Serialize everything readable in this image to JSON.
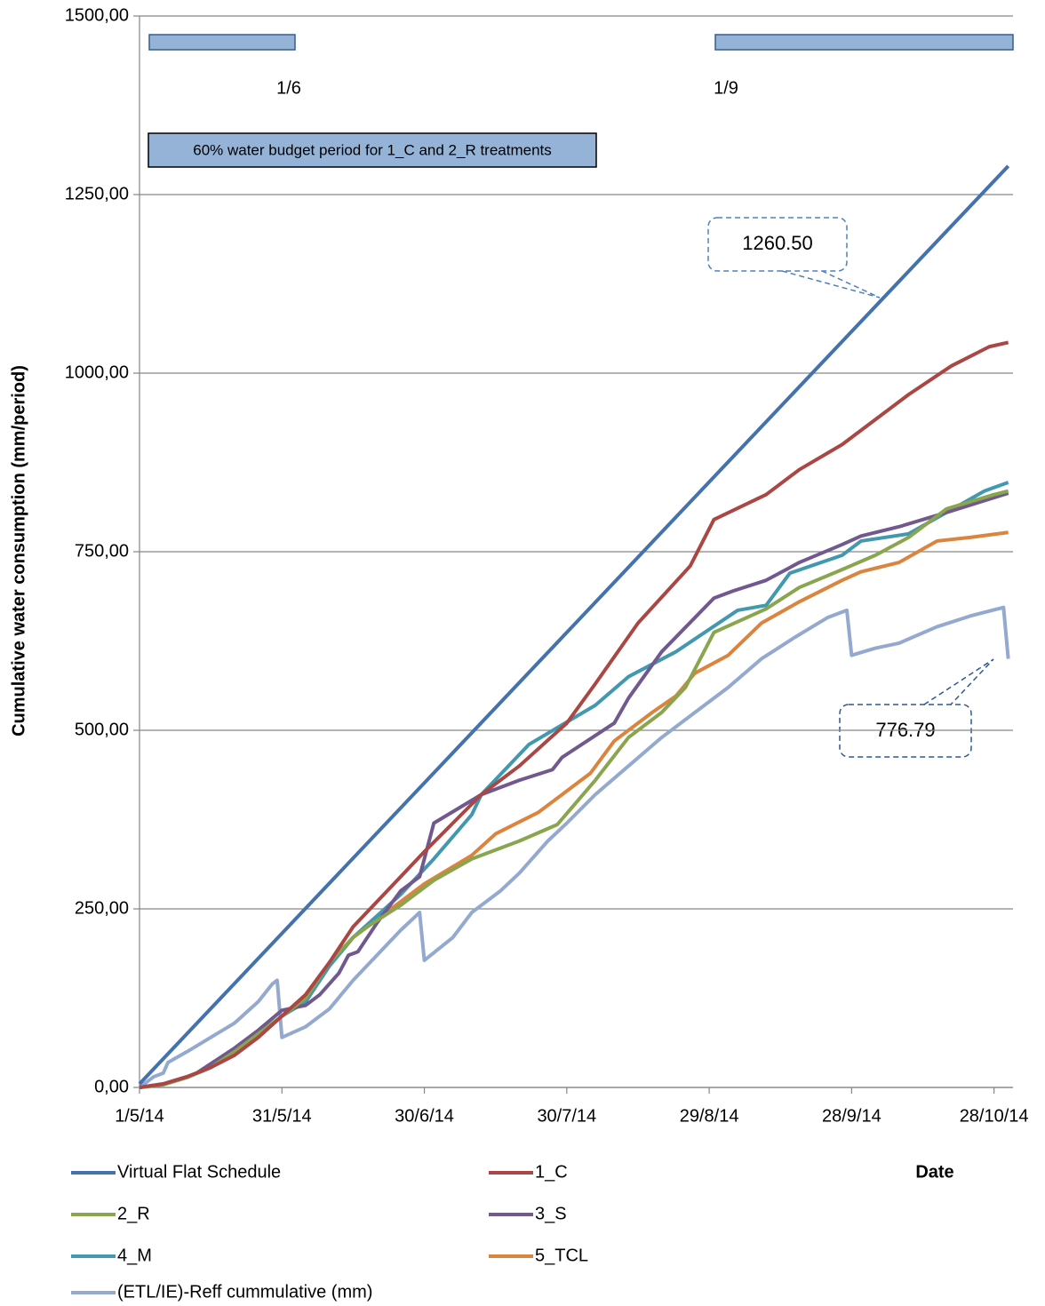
{
  "chart_data": {
    "type": "line",
    "y_label": "Cumulative water consumption (mm/period)",
    "x_label": "Date",
    "grid": true,
    "legend": "bottom",
    "xlim": [
      "1/5/14",
      "1/11/14"
    ],
    "xticks": [
      "1/5/14",
      "31/5/14",
      "30/6/14",
      "30/7/14",
      "29/8/14",
      "28/9/14",
      "28/10/14"
    ],
    "ylim": [
      0,
      1500
    ],
    "yticks": [
      {
        "value": 0,
        "label": "0,00"
      },
      {
        "value": 250,
        "label": "250,00"
      },
      {
        "value": 500,
        "label": "500,00"
      },
      {
        "value": 750,
        "label": "750,00"
      },
      {
        "value": 1000,
        "label": "1000,00"
      },
      {
        "value": 1250,
        "label": "1250,00"
      },
      {
        "value": 1500,
        "label": "1500,00"
      }
    ],
    "annotations": [
      "1/6",
      "1/9",
      "60% water budget period for 1_C and 2_R treatments",
      "1260.50",
      "776.79"
    ],
    "series": [
      {
        "name": "Virtual Flat Schedule",
        "color": "#4472ad",
        "x": [
          "1/5/14",
          "31/10/14"
        ],
        "values": [
          5,
          1290
        ]
      },
      {
        "name": "1_C",
        "color": "#aa4643",
        "x": [
          "1/5/14",
          "6/5/14",
          "11/5/14",
          "16/5/14",
          "21/5/14",
          "26/5/14",
          "31/5/14",
          "5/6/14",
          "10/6/14",
          "15/6/14",
          "20/6/14",
          "25/6/14",
          "30/6/14",
          "6/7/14",
          "12/7/14",
          "20/7/14",
          "30/7/14",
          "5/8/14",
          "14/8/14",
          "25/8/14",
          "30/8/14",
          "10/9/14",
          "17/9/14",
          "26/9/14",
          "10/10/14",
          "19/10/14",
          "27/10/14",
          "31/10/14"
        ],
        "values": [
          0,
          5,
          15,
          28,
          45,
          70,
          100,
          130,
          175,
          225,
          260,
          295,
          330,
          370,
          410,
          450,
          510,
          565,
          650,
          730,
          795,
          830,
          865,
          900,
          970,
          1010,
          1037,
          1043
        ]
      },
      {
        "name": "2_R",
        "color": "#89a54e",
        "x": [
          "1/5/14",
          "6/5/14",
          "11/5/14",
          "16/5/14",
          "21/5/14",
          "26/5/14",
          "31/5/14",
          "5/6/14",
          "10/6/14",
          "15/6/14",
          "18/6/14",
          "25/6/14",
          "2/7/14",
          "10/7/14",
          "20/7/14",
          "28/7/14",
          "5/8/14",
          "12/8/14",
          "19/8/14",
          "24/8/14",
          "30/8/14",
          "10/9/14",
          "17/9/14",
          "26/9/14",
          "3/10/14",
          "10/10/14",
          "18/10/14",
          "28/10/14",
          "31/10/14"
        ],
        "values": [
          0,
          4,
          14,
          28,
          50,
          75,
          100,
          125,
          175,
          210,
          225,
          255,
          290,
          320,
          345,
          368,
          430,
          490,
          525,
          560,
          637,
          670,
          700,
          725,
          745,
          770,
          810,
          830,
          835
        ]
      },
      {
        "name": "3_S",
        "color": "#71588f",
        "x": [
          "1/5/14",
          "6/5/14",
          "11/5/14",
          "13/5/14",
          "21/5/14",
          "26/5/14",
          "31/5/14",
          "5/6/14",
          "8/6/14",
          "12/6/14",
          "14/6/14",
          "16/6/14",
          "20/6/14",
          "25/6/14",
          "29/6/14",
          "2/7/14",
          "12/7/14",
          "20/7/14",
          "27/7/14",
          "29/7/14",
          "9/8/14",
          "12/8/14",
          "19/8/14",
          "30/8/14",
          "3/9/14",
          "10/9/14",
          "17/9/14",
          "26/9/14",
          "30/9/14",
          "8/10/14",
          "18/10/14",
          "31/10/14"
        ],
        "values": [
          0,
          5,
          15,
          20,
          55,
          80,
          108,
          115,
          130,
          160,
          185,
          190,
          230,
          275,
          295,
          370,
          410,
          430,
          445,
          462,
          510,
          545,
          610,
          685,
          695,
          710,
          735,
          760,
          772,
          785,
          805,
          832
        ]
      },
      {
        "name": "4_M",
        "color": "#4198af",
        "x": [
          "1/5/14",
          "6/5/14",
          "11/5/14",
          "16/5/14",
          "21/5/14",
          "26/5/14",
          "31/5/14",
          "5/6/14",
          "10/6/14",
          "15/6/14",
          "25/6/14",
          "2/7/14",
          "10/7/14",
          "12/7/14",
          "22/7/14",
          "5/8/14",
          "12/8/14",
          "22/8/14",
          "4/9/14",
          "10/9/14",
          "15/9/14",
          "26/9/14",
          "30/9/14",
          "10/10/14",
          "18/10/14",
          "26/10/14",
          "31/10/14"
        ],
        "values": [
          0,
          4,
          14,
          28,
          48,
          72,
          100,
          120,
          170,
          210,
          270,
          320,
          382,
          410,
          480,
          535,
          575,
          610,
          668,
          675,
          720,
          745,
          765,
          775,
          805,
          835,
          847
        ]
      },
      {
        "name": "5_TCL",
        "color": "#db843d",
        "x": [
          "1/5/14",
          "6/5/14",
          "11/5/14",
          "16/5/14",
          "21/5/14",
          "26/5/14",
          "31/5/14",
          "5/6/14",
          "10/6/14",
          "15/6/14",
          "22/6/14",
          "30/6/14",
          "10/7/14",
          "15/7/14",
          "24/7/14",
          "4/8/14",
          "9/8/14",
          "17/8/14",
          "22/8/14",
          "26/8/14",
          "2/9/14",
          "9/9/14",
          "17/9/14",
          "26/9/14",
          "30/9/14",
          "8/10/14",
          "16/10/14",
          "23/10/14",
          "31/10/14"
        ],
        "values": [
          0,
          4,
          14,
          28,
          48,
          72,
          100,
          120,
          170,
          210,
          245,
          285,
          325,
          355,
          385,
          440,
          485,
          525,
          548,
          580,
          605,
          650,
          680,
          710,
          722,
          735,
          765,
          770,
          777
        ]
      },
      {
        "name": "(ETL/IE)-Reff cummulative (mm)",
        "color": "#93a9cf",
        "x": [
          "1/5/14",
          "4/5/14",
          "6/5/14",
          "7/5/14",
          "11/5/14",
          "16/5/14",
          "21/5/14",
          "26/5/14",
          "29/5/14",
          "30/5/14",
          "31/5/14",
          "5/6/14",
          "10/6/14",
          "15/6/14",
          "20/6/14",
          "25/6/14",
          "29/6/14",
          "30/6/14",
          "6/7/14",
          "10/7/14",
          "16/7/14",
          "20/7/14",
          "26/7/14",
          "30/7/14",
          "5/8/14",
          "12/8/14",
          "19/8/14",
          "26/8/14",
          "2/9/14",
          "9/9/14",
          "16/9/14",
          "23/9/14",
          "27/9/14",
          "28/9/14",
          "3/10/14",
          "8/10/14",
          "16/10/14",
          "23/10/14",
          "30/10/14",
          "31/10/14"
        ],
        "values": [
          0,
          15,
          20,
          35,
          50,
          70,
          90,
          120,
          145,
          150,
          70,
          85,
          110,
          150,
          185,
          220,
          245,
          178,
          210,
          245,
          275,
          300,
          345,
          370,
          410,
          450,
          490,
          525,
          560,
          600,
          630,
          658,
          668,
          605,
          615,
          622,
          645,
          660,
          672,
          600
        ]
      }
    ]
  }
}
